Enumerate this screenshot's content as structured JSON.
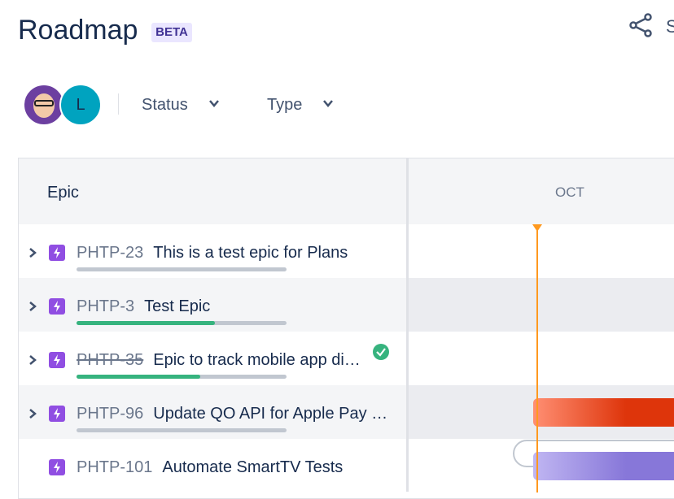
{
  "header": {
    "title": "Roadmap",
    "badge": "BETA",
    "share": "S"
  },
  "filters": {
    "avatar": "L",
    "items": [
      "Status",
      "Type"
    ]
  },
  "table": {
    "column": "Epic",
    "month": "OCT",
    "rows": [
      {
        "key": "PHTP-23",
        "title": "This is a test epic for Plans",
        "progress": 0,
        "expandable": true,
        "done": false
      },
      {
        "key": "PHTP-3",
        "title": "Test Epic",
        "progress": 66,
        "expandable": true,
        "done": false
      },
      {
        "key": "PHTP-35",
        "title": "Epic to track mobile app di…",
        "progress": 59,
        "expandable": true,
        "done": true
      },
      {
        "key": "PHTP-96",
        "title": "Update QO API for Apple Pay …",
        "progress": 0,
        "expandable": true,
        "done": false
      },
      {
        "key": "PHTP-101",
        "title": "Automate SmartTV Tests",
        "expandable": false,
        "done": false
      }
    ]
  }
}
